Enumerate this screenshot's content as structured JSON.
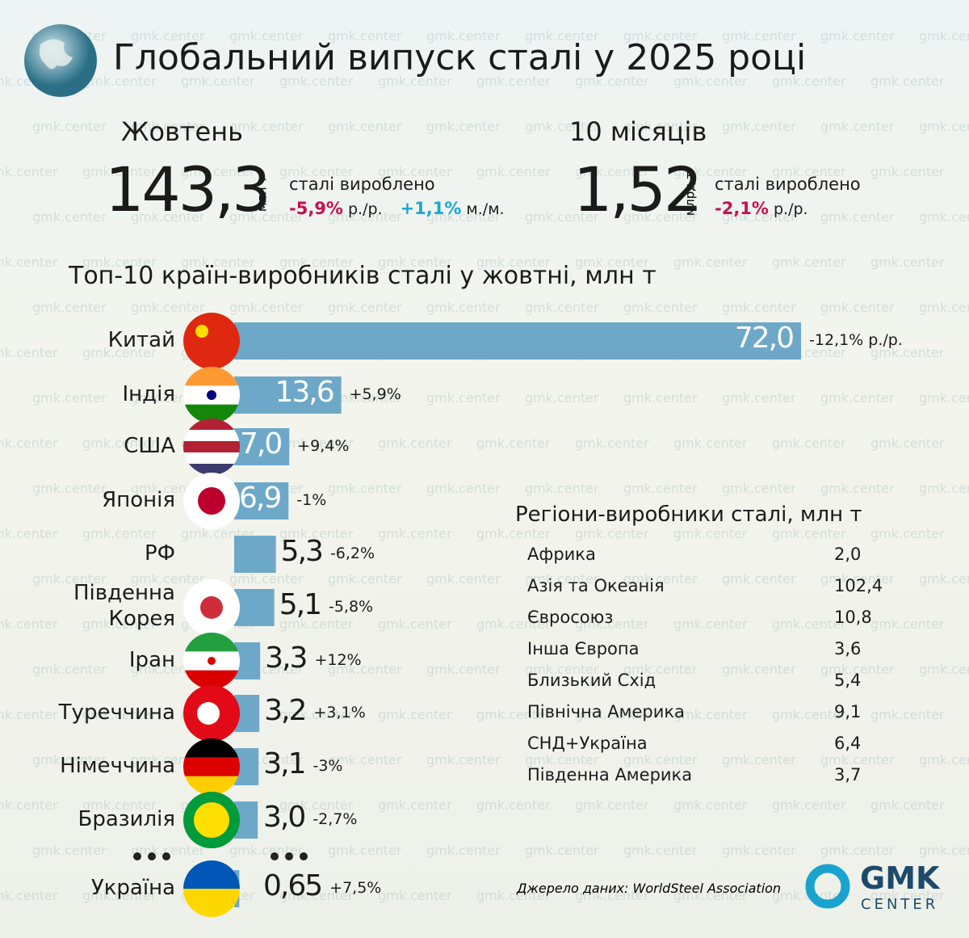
{
  "title": "Глобальний випуск сталі у 2025 році",
  "watermark": "gmk.center",
  "kpis": [
    {
      "period": "Жовтень",
      "value": "143,3",
      "unit": "млн т",
      "caption": "сталі вироблено",
      "changes": [
        {
          "value": "-5,9%",
          "label": "р./р."
        },
        {
          "value": "+1,1%",
          "label": "м./м."
        }
      ]
    },
    {
      "period": "10 місяців",
      "value": "1,52",
      "unit": "млрд т",
      "caption": "сталі вироблено",
      "changes": [
        {
          "value": "-2,1%",
          "label": "р./р."
        }
      ]
    }
  ],
  "chart_data": {
    "type": "bar",
    "orientation": "horizontal",
    "title": "Топ-10 країн-виробників сталі у жовтні, млн т",
    "categories": [
      "Китай",
      "Індія",
      "США",
      "Японія",
      "РФ",
      "Південна Корея",
      "Іран",
      "Туреччина",
      "Німеччина",
      "Бразилія",
      "Україна"
    ],
    "values": [
      72.0,
      13.6,
      7.0,
      6.9,
      5.3,
      5.1,
      3.3,
      3.2,
      3.1,
      3.0,
      0.65
    ],
    "value_labels": [
      "72,0",
      "13,6",
      "7,0",
      "6,9",
      "5,3",
      "5,1",
      "3,3",
      "3,2",
      "3,1",
      "3,0",
      "0,65"
    ],
    "changes": [
      "-12,1% р./р.",
      "+5,9%",
      "+9,4%",
      "-1%",
      "-6,2%",
      "-5,8%",
      "+12%",
      "+3,1%",
      "-3%",
      "-2,7%",
      "+7,5%"
    ],
    "color": "#6ea8c9",
    "xlim": [
      0,
      72
    ]
  },
  "regions": {
    "title": "Регіони-виробники сталі, млн т",
    "rows": [
      [
        "Африка",
        "2,0"
      ],
      [
        "Азія та Океанія",
        "102,4"
      ],
      [
        "Євросоюз",
        "10,8"
      ],
      [
        "Інша Європа",
        "3,6"
      ],
      [
        "Близький Схід",
        "5,4"
      ],
      [
        "Північна Америка",
        "9,1"
      ],
      [
        "СНД+Україна",
        "6,4"
      ],
      [
        "Південна Америка",
        "3,7"
      ]
    ]
  },
  "source": "Джерело даних: WorldSteel Association",
  "logo": {
    "name": "GMK",
    "sub": "CENTER"
  }
}
